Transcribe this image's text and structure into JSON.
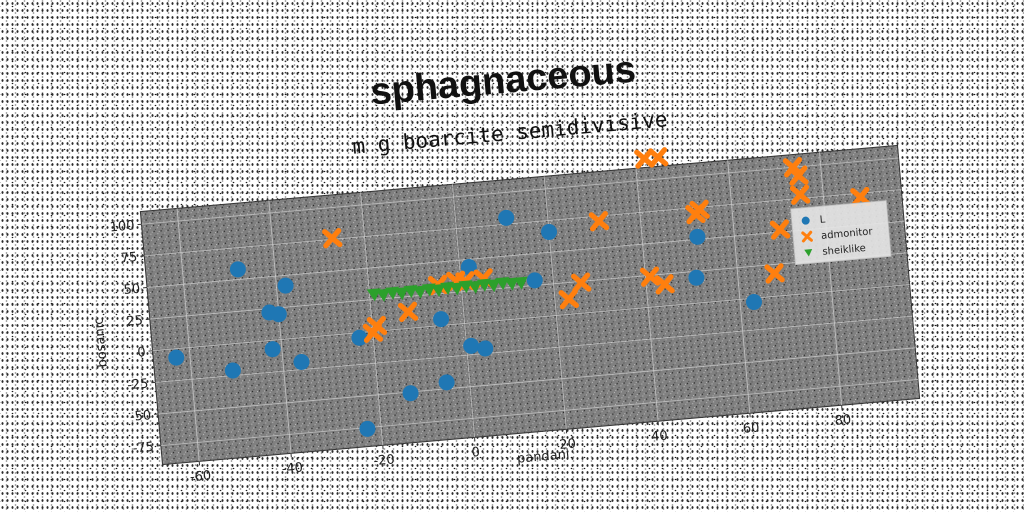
{
  "chart_data": {
    "type": "scatter",
    "title": "sphagnaceous",
    "subtitle": "m g boarcite semidivisive",
    "xlabel": "pandani",
    "ylabel": "bosanic",
    "xlim": [
      -68,
      97
    ],
    "ylim": [
      -90,
      110
    ],
    "xticks": [
      "-60",
      "-40",
      "-20",
      "0",
      "20",
      "40",
      "60",
      "80"
    ],
    "xtick_values": [
      -60,
      -40,
      -20,
      0,
      20,
      40,
      60,
      80
    ],
    "yticks": [
      "-75",
      "-50",
      "-25",
      "0",
      "25",
      "50",
      "75",
      "100"
    ],
    "ytick_values": [
      -75,
      -50,
      -25,
      0,
      25,
      50,
      75,
      100
    ],
    "grid": true,
    "legend_position": "center-right",
    "background_color": "#808080",
    "series": [
      {
        "name": "L",
        "marker": "circle",
        "color": "#1f77b4",
        "points": [
          [
            -63,
            -7
          ],
          [
            -51,
            -21
          ],
          [
            -48,
            58
          ],
          [
            -42,
            22
          ],
          [
            -42,
            -7
          ],
          [
            -40,
            20
          ],
          [
            -38,
            42
          ],
          [
            -36,
            -19
          ],
          [
            -23,
            -4
          ],
          [
            -23,
            -76
          ],
          [
            -13,
            -51
          ],
          [
            -5,
            5
          ],
          [
            -5,
            -45
          ],
          [
            1,
            -18
          ],
          [
            2,
            44
          ],
          [
            4,
            -21
          ],
          [
            11,
            80
          ],
          [
            16,
            29
          ],
          [
            20,
            66
          ],
          [
            51,
            20
          ],
          [
            52,
            52
          ],
          [
            63,
            -3
          ]
        ]
      },
      {
        "name": "admonitor",
        "marker": "x",
        "color": "#ff7f0e",
        "points": [
          [
            -27,
            76
          ],
          [
            -20,
            -1
          ],
          [
            -19,
            4
          ],
          [
            -12,
            13
          ],
          [
            -5,
            32
          ],
          [
            -1,
            34
          ],
          [
            1,
            33
          ],
          [
            5,
            34
          ],
          [
            23,
            12
          ],
          [
            26,
            24
          ],
          [
            31,
            71
          ],
          [
            41,
            24
          ],
          [
            44,
            17
          ],
          [
            42,
            117
          ],
          [
            45,
            117
          ],
          [
            52,
            70
          ],
          [
            53,
            73
          ],
          [
            68,
            18
          ],
          [
            70,
            52
          ],
          [
            74,
            100
          ],
          [
            75,
            93
          ],
          [
            75,
            78
          ],
          [
            88,
            72
          ]
        ]
      },
      {
        "name": "sheiklike",
        "marker": "triangle-down",
        "color": "#2ca02c",
        "points": [
          [
            -19,
            29
          ],
          [
            -17,
            28
          ],
          [
            -15,
            29
          ],
          [
            -13,
            28
          ],
          [
            -11,
            29
          ],
          [
            -9,
            28
          ],
          [
            -7,
            29
          ],
          [
            -5,
            28
          ],
          [
            -3,
            29
          ],
          [
            -1,
            28
          ],
          [
            1,
            29
          ],
          [
            3,
            28
          ],
          [
            5,
            29
          ],
          [
            7,
            28
          ],
          [
            9,
            29
          ],
          [
            11,
            28
          ],
          [
            13,
            28
          ]
        ]
      }
    ]
  }
}
